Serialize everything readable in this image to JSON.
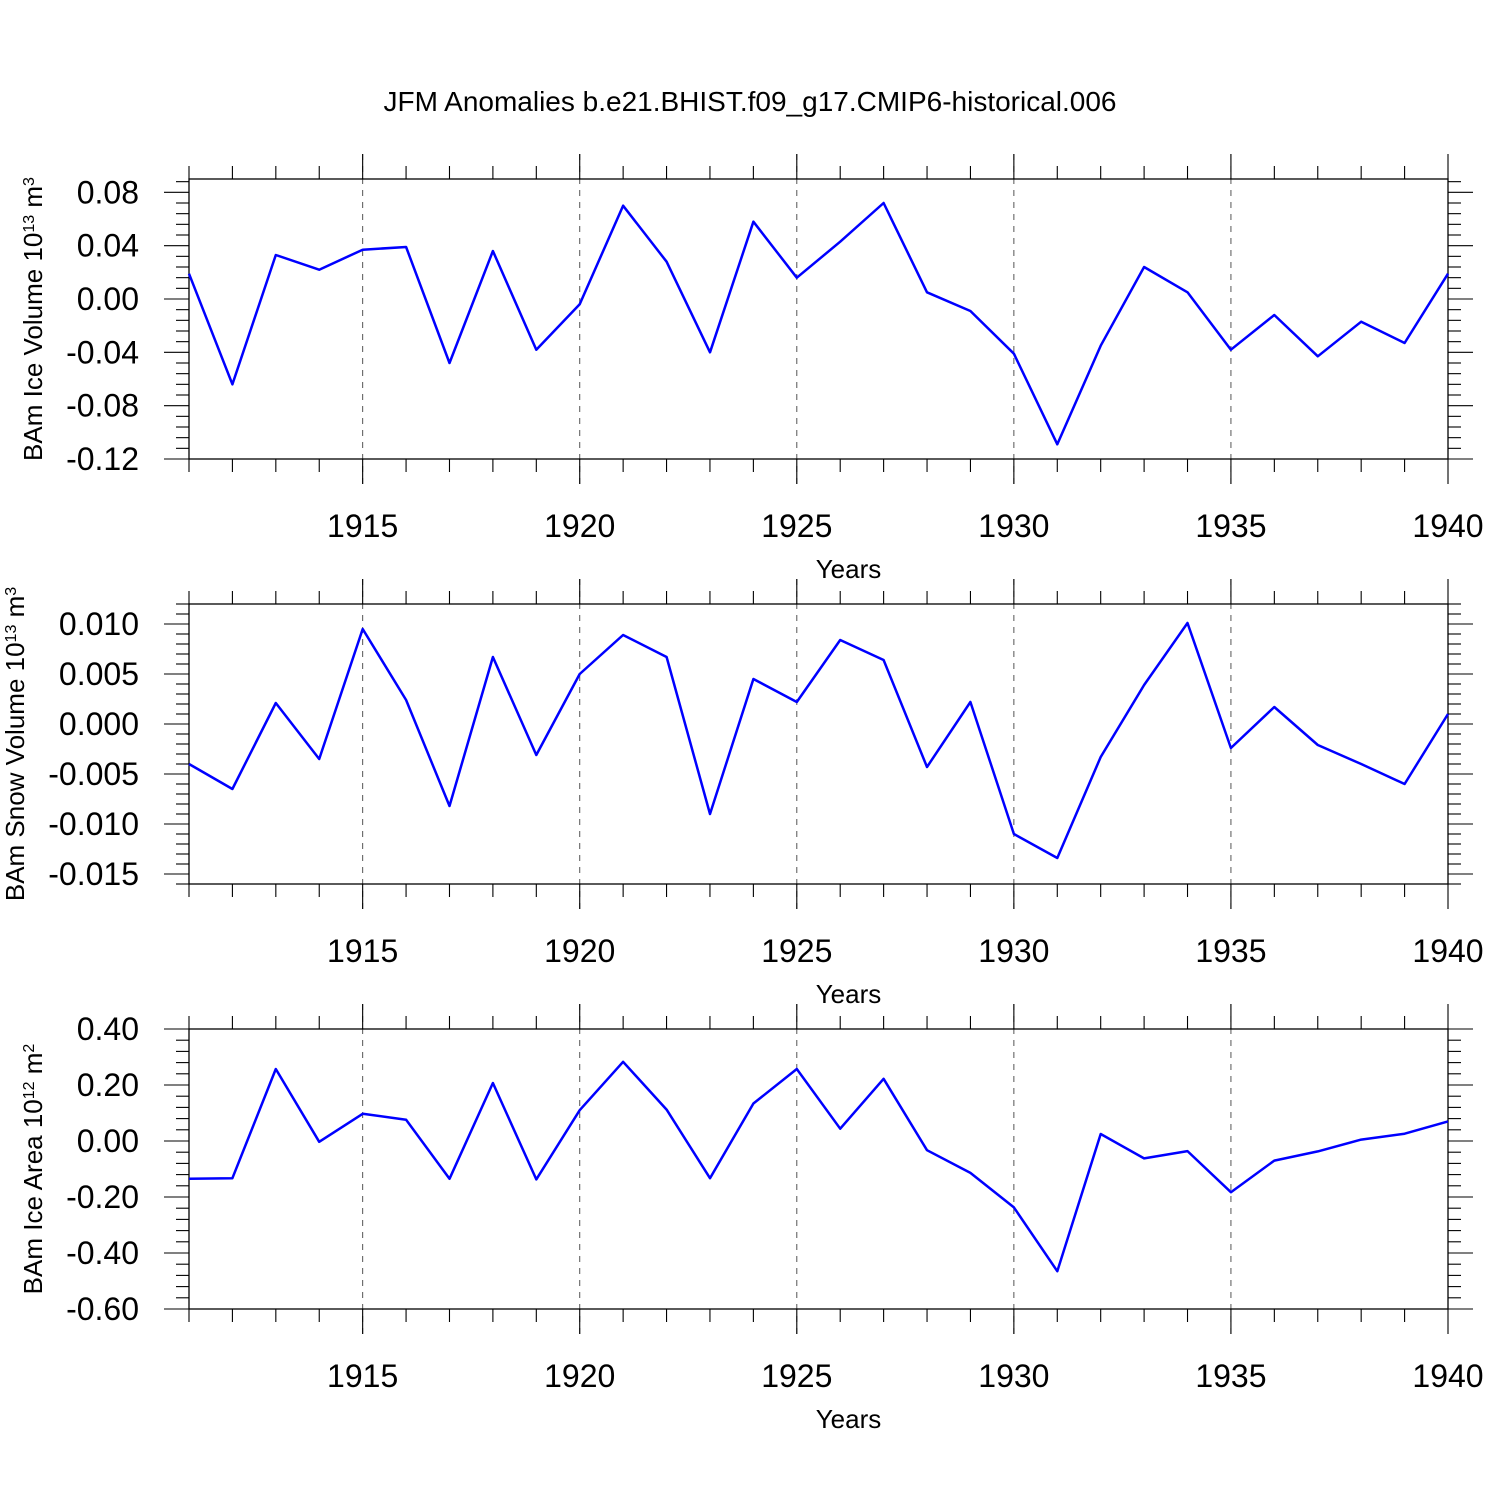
{
  "title": "JFM Anomalies b.e21.BHIST.f09_g17.CMIP6-historical.006",
  "line_color": "#0000ff",
  "chart_data": [
    {
      "type": "line",
      "title": "",
      "xlabel": "Years",
      "ylabel": "BAm Ice Volume 10",
      "ylabel_exp": "13",
      "ylabel_unit": " m",
      "ylabel_unit_exp": "3",
      "xlim": [
        1911,
        1940
      ],
      "ylim": [
        -0.12,
        0.09
      ],
      "x_ticks": [
        1915,
        1920,
        1925,
        1930,
        1935,
        1940
      ],
      "x_tick_labels": [
        "1915",
        "1920",
        "1925",
        "1930",
        "1935",
        "1940"
      ],
      "y_ticks": [
        -0.12,
        -0.08,
        -0.04,
        0.0,
        0.04,
        0.08
      ],
      "y_tick_labels": [
        "-0.12",
        "-0.08",
        "-0.04",
        "0.00",
        "0.04",
        "0.08"
      ],
      "grid": "vertical dashed at major x ticks",
      "x": [
        1911,
        1912,
        1913,
        1914,
        1915,
        1916,
        1917,
        1918,
        1919,
        1920,
        1921,
        1922,
        1923,
        1924,
        1925,
        1926,
        1927,
        1928,
        1929,
        1930,
        1931,
        1932,
        1933,
        1934,
        1935,
        1936,
        1937,
        1938,
        1939,
        1940
      ],
      "values": [
        0.019,
        -0.064,
        0.033,
        0.022,
        0.037,
        0.039,
        -0.048,
        0.036,
        -0.038,
        -0.004,
        0.07,
        0.028,
        -0.04,
        0.058,
        0.016,
        0.043,
        0.072,
        0.005,
        -0.009,
        -0.041,
        -0.109,
        -0.035,
        0.024,
        0.005,
        -0.038,
        -0.012,
        -0.043,
        -0.017,
        -0.033,
        0.019
      ]
    },
    {
      "type": "line",
      "title": "",
      "xlabel": "Years",
      "ylabel": "BAm Snow Volume 10",
      "ylabel_exp": "13",
      "ylabel_unit": " m",
      "ylabel_unit_exp": "3",
      "xlim": [
        1911,
        1940
      ],
      "ylim": [
        -0.016,
        0.012
      ],
      "x_ticks": [
        1915,
        1920,
        1925,
        1930,
        1935,
        1940
      ],
      "x_tick_labels": [
        "1915",
        "1920",
        "1925",
        "1930",
        "1935",
        "1940"
      ],
      "y_ticks": [
        -0.015,
        -0.01,
        -0.005,
        0.0,
        0.005,
        0.01
      ],
      "y_tick_labels": [
        "-0.015",
        "-0.010",
        "-0.005",
        "0.000",
        "0.005",
        "0.010"
      ],
      "grid": "vertical dashed at major x ticks",
      "x": [
        1911,
        1912,
        1913,
        1914,
        1915,
        1916,
        1917,
        1918,
        1919,
        1920,
        1921,
        1922,
        1923,
        1924,
        1925,
        1926,
        1927,
        1928,
        1929,
        1930,
        1931,
        1932,
        1933,
        1934,
        1935,
        1936,
        1937,
        1938,
        1939,
        1940
      ],
      "values": [
        -0.004,
        -0.0065,
        0.0021,
        -0.0035,
        0.0095,
        0.0024,
        -0.0082,
        0.0067,
        -0.0031,
        0.005,
        0.0089,
        0.0067,
        -0.009,
        0.0045,
        0.0022,
        0.0084,
        0.0064,
        -0.0043,
        0.0022,
        -0.011,
        -0.0134,
        -0.0033,
        0.0039,
        0.0101,
        -0.0024,
        0.0017,
        -0.0021,
        -0.004,
        -0.006,
        0.001
      ]
    },
    {
      "type": "line",
      "title": "",
      "xlabel": "Years",
      "ylabel": "BAm Ice Area 10",
      "ylabel_exp": "12",
      "ylabel_unit": " m",
      "ylabel_unit_exp": "2",
      "xlim": [
        1911,
        1940
      ],
      "ylim": [
        -0.6,
        0.4
      ],
      "x_ticks": [
        1915,
        1920,
        1925,
        1930,
        1935,
        1940
      ],
      "x_tick_labels": [
        "1915",
        "1920",
        "1925",
        "1930",
        "1935",
        "1940"
      ],
      "y_ticks": [
        -0.6,
        -0.4,
        -0.2,
        0.0,
        0.2,
        0.4
      ],
      "y_tick_labels": [
        "-0.60",
        "-0.40",
        "-0.20",
        "0.00",
        "0.20",
        "0.40"
      ],
      "grid": "vertical dashed at major x ticks",
      "x": [
        1911,
        1912,
        1913,
        1914,
        1915,
        1916,
        1917,
        1918,
        1919,
        1920,
        1921,
        1922,
        1923,
        1924,
        1925,
        1926,
        1927,
        1928,
        1929,
        1930,
        1931,
        1932,
        1933,
        1934,
        1935,
        1936,
        1937,
        1938,
        1939,
        1940
      ],
      "values": [
        -0.135,
        -0.133,
        0.257,
        -0.003,
        0.097,
        0.076,
        -0.135,
        0.207,
        -0.137,
        0.11,
        0.283,
        0.112,
        -0.133,
        0.134,
        0.257,
        0.044,
        0.222,
        -0.033,
        -0.114,
        -0.237,
        -0.465,
        0.025,
        -0.062,
        -0.036,
        -0.183,
        -0.07,
        -0.037,
        0.005,
        0.026,
        0.07
      ]
    }
  ]
}
